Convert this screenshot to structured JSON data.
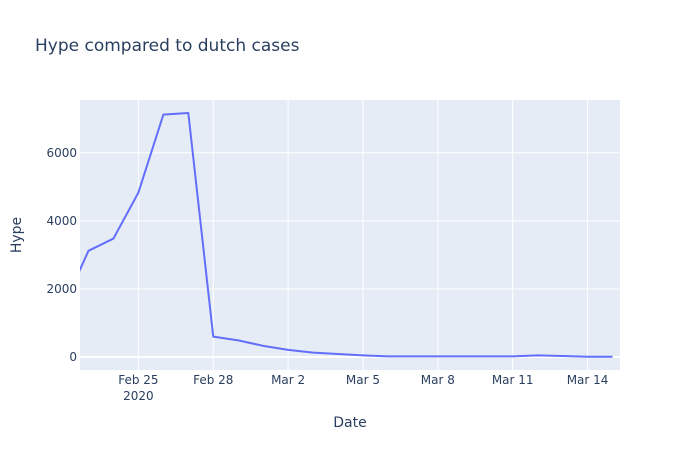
{
  "chart_data": {
    "type": "line",
    "title": "Hype compared to dutch cases",
    "xlabel": "Date",
    "ylabel": "Hype",
    "x_start": "2020-02-22",
    "x": [
      "2020-02-22",
      "2020-02-23",
      "2020-02-24",
      "2020-02-25",
      "2020-02-26",
      "2020-02-27",
      "2020-02-28",
      "2020-02-29",
      "2020-03-01",
      "2020-03-02",
      "2020-03-03",
      "2020-03-04",
      "2020-03-05",
      "2020-03-06",
      "2020-03-07",
      "2020-03-08",
      "2020-03-09",
      "2020-03-10",
      "2020-03-11",
      "2020-03-12",
      "2020-03-13",
      "2020-03-14",
      "2020-03-15"
    ],
    "values": [
      1500,
      3120,
      3480,
      4830,
      7120,
      7170,
      600,
      490,
      330,
      210,
      130,
      90,
      50,
      20,
      20,
      20,
      20,
      20,
      20,
      50,
      30,
      10,
      10
    ],
    "xlim": [
      "2020-02-23",
      "2020-03-15"
    ],
    "ylim": [
      -380,
      7550
    ],
    "x_ticks": [
      {
        "date": "2020-02-25",
        "label": "Feb 25",
        "sublabel": "2020"
      },
      {
        "date": "2020-02-28",
        "label": "Feb 28",
        "sublabel": ""
      },
      {
        "date": "2020-03-02",
        "label": "Mar 2",
        "sublabel": ""
      },
      {
        "date": "2020-03-05",
        "label": "Mar 5",
        "sublabel": ""
      },
      {
        "date": "2020-03-08",
        "label": "Mar 8",
        "sublabel": ""
      },
      {
        "date": "2020-03-11",
        "label": "Mar 11",
        "sublabel": ""
      },
      {
        "date": "2020-03-14",
        "label": "Mar 14",
        "sublabel": ""
      }
    ],
    "y_ticks": [
      {
        "value": 0,
        "label": "0"
      },
      {
        "value": 2000,
        "label": "2000"
      },
      {
        "value": 4000,
        "label": "4000"
      },
      {
        "value": 6000,
        "label": "6000"
      }
    ],
    "grid": true,
    "legend": "none",
    "colors": {
      "line": "#636efa",
      "plot_background": "#e5ecf6",
      "grid": "#ffffff",
      "text": "#2a3f5f"
    }
  }
}
